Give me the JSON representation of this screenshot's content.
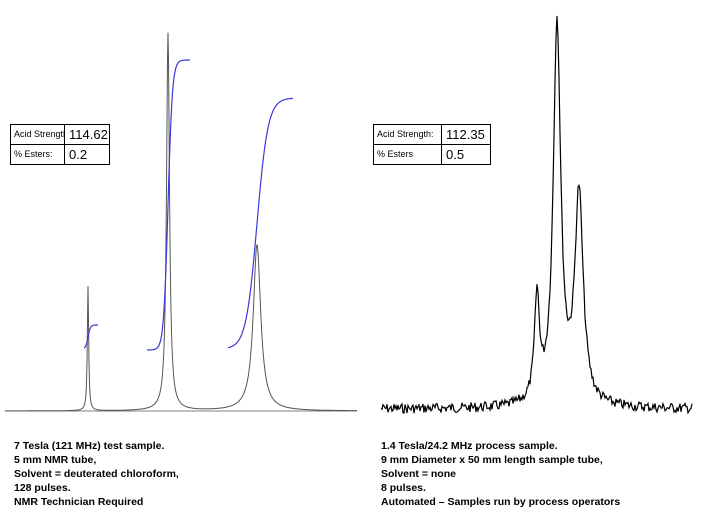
{
  "chart_data": [
    {
      "type": "line",
      "title": "",
      "xlabel": "",
      "ylabel": "",
      "grid": false,
      "spectrum_color": "#555555",
      "integral_color": "#3a3ad8",
      "peaks": [
        {
          "height": 0.33,
          "width": 0.8
        },
        {
          "height": 1.0,
          "width": 1.8
        },
        {
          "height": 0.44,
          "width": 4.5
        }
      ],
      "info_box": {
        "acid_strength_label": "Acid Strength:",
        "acid_strength_value": "114.62",
        "esters_label": "% Esters:",
        "esters_value": "0.2"
      },
      "caption": [
        "7 Tesla (121 MHz) test sample.",
        "5 mm NMR tube,",
        "Solvent = deuterated chloroform,",
        "128 pulses.",
        "NMR Technician Required"
      ]
    },
    {
      "type": "line",
      "title": "",
      "xlabel": "",
      "ylabel": "",
      "grid": false,
      "spectrum_color": "#000000",
      "peaks": [
        {
          "height": 0.27,
          "width": 3
        },
        {
          "height": 1.0,
          "width": 4.5
        },
        {
          "height": 0.55,
          "width": 5
        }
      ],
      "info_box": {
        "acid_strength_label": "Acid Strength:",
        "acid_strength_value": "112.35",
        "esters_label": "% Esters",
        "esters_value": "0.5"
      },
      "caption": [
        "1.4 Tesla/24.2 MHz process sample.",
        "9 mm Diameter x 50 mm length sample tube,",
        "Solvent = none",
        "8 pulses.",
        "Automated – Samples run by process operators"
      ]
    }
  ]
}
